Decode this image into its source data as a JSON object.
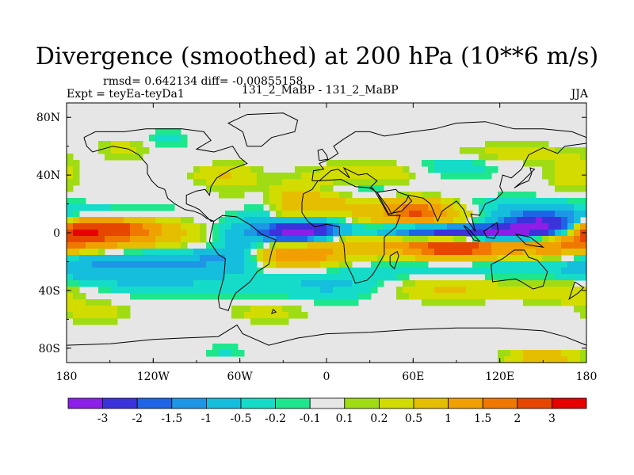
{
  "chart_data": {
    "type": "heatmap",
    "title": "Divergence (smoothed) at 200 hPa (10**6 m/s)",
    "stats_line": "rmsd= 0.642134 diff= -0.00855158",
    "experiment_label": "Expt = teyEa-teyDa1",
    "case_label": "131_2_MaBP - 131_2_MaBP",
    "season": "JJA",
    "xlim": [
      -180,
      180
    ],
    "ylim": [
      -90,
      90
    ],
    "x_ticks": [
      {
        "value": -180,
        "label": "180"
      },
      {
        "value": -120,
        "label": "120W"
      },
      {
        "value": -60,
        "label": "60W"
      },
      {
        "value": 0,
        "label": "0"
      },
      {
        "value": 60,
        "label": "60E"
      },
      {
        "value": 120,
        "label": "120E"
      },
      {
        "value": 180,
        "label": "180"
      }
    ],
    "y_ticks": [
      {
        "value": 80,
        "label": "80N"
      },
      {
        "value": 40,
        "label": "40N"
      },
      {
        "value": 0,
        "label": "0"
      },
      {
        "value": -40,
        "label": "40S"
      },
      {
        "value": -80,
        "label": "80S"
      }
    ],
    "colorbar": {
      "labels": [
        "-3",
        "-2",
        "-1.5",
        "-1",
        "-0.5",
        "-0.2",
        "-0.1",
        "0.1",
        "0.2",
        "0.5",
        "1",
        "1.5",
        "2",
        "3"
      ],
      "colors": [
        "#8c1ee8",
        "#3c32dc",
        "#1e64e6",
        "#1e96e6",
        "#14bedc",
        "#14dcc8",
        "#1ee68c",
        "#e6e6e6",
        "#a0dc14",
        "#d2dc00",
        "#e6be00",
        "#f0a000",
        "#f07800",
        "#e64600",
        "#e60000"
      ]
    },
    "field": {
      "background_value": 0,
      "blobs": [
        {
          "lon": -160,
          "lat": 3,
          "rlon": 22,
          "rlat": 6,
          "value": 2.2
        },
        {
          "lon": -130,
          "lat": 3,
          "rlon": 25,
          "rlat": 6,
          "value": 1.0
        },
        {
          "lon": -175,
          "lat": 0,
          "rlon": 10,
          "rlat": 5,
          "value": 1.5
        },
        {
          "lon": -150,
          "lat": 12,
          "rlon": 35,
          "rlat": 5,
          "value": -0.6
        },
        {
          "lon": -150,
          "lat": -8,
          "rlon": 40,
          "rlat": 5,
          "value": 0.7
        },
        {
          "lon": -145,
          "lat": -18,
          "rlon": 40,
          "rlat": 5,
          "value": -0.8
        },
        {
          "lon": -155,
          "lat": -28,
          "rlon": 30,
          "rlat": 7,
          "value": -0.7
        },
        {
          "lon": -95,
          "lat": -30,
          "rlon": 30,
          "rlat": 10,
          "value": -0.5
        },
        {
          "lon": -75,
          "lat": -18,
          "rlon": 22,
          "rlat": 6,
          "value": -0.6
        },
        {
          "lon": -60,
          "lat": -5,
          "rlon": 12,
          "rlat": 12,
          "value": -0.8
        },
        {
          "lon": -45,
          "lat": 15,
          "rlon": 10,
          "rlat": 10,
          "value": -0.6
        },
        {
          "lon": -15,
          "lat": 20,
          "rlon": 30,
          "rlat": 10,
          "value": 0.9
        },
        {
          "lon": -25,
          "lat": 0,
          "rlon": 15,
          "rlat": 5,
          "value": -3.0
        },
        {
          "lon": -5,
          "lat": 3,
          "rlon": 15,
          "rlat": 5,
          "value": -1.8
        },
        {
          "lon": -20,
          "lat": -15,
          "rlon": 25,
          "rlat": 7,
          "value": 1.5
        },
        {
          "lon": 0,
          "lat": -35,
          "rlon": 30,
          "rlat": 8,
          "value": -0.6
        },
        {
          "lon": 60,
          "lat": 15,
          "rlon": 15,
          "rlat": 6,
          "value": 1.3
        },
        {
          "lon": 45,
          "lat": -5,
          "rlon": 30,
          "rlat": 6,
          "value": 0.9
        },
        {
          "lon": 75,
          "lat": 0,
          "rlon": 30,
          "rlat": 4,
          "value": -3.0
        },
        {
          "lon": 125,
          "lat": 0,
          "rlon": 20,
          "rlat": 4,
          "value": -2.5
        },
        {
          "lon": 150,
          "lat": 6,
          "rlon": 18,
          "rlat": 5,
          "value": -3.0
        },
        {
          "lon": 90,
          "lat": -10,
          "rlon": 25,
          "rlat": 6,
          "value": 2.5
        },
        {
          "lon": 75,
          "lat": 12,
          "rlon": 30,
          "rlat": 6,
          "value": 1.0
        },
        {
          "lon": 130,
          "lat": 15,
          "rlon": 30,
          "rlat": 6,
          "value": -0.8
        },
        {
          "lon": 160,
          "lat": -10,
          "rlon": 25,
          "rlat": 6,
          "value": 1.2
        },
        {
          "lon": 100,
          "lat": -25,
          "rlon": 50,
          "rlat": 6,
          "value": -0.5
        },
        {
          "lon": 85,
          "lat": -38,
          "rlon": 30,
          "rlat": 6,
          "value": 0.6
        },
        {
          "lon": 165,
          "lat": -40,
          "rlon": 20,
          "rlat": 6,
          "value": 0.5
        },
        {
          "lon": 30,
          "lat": 40,
          "rlon": 25,
          "rlat": 6,
          "value": 0.5
        },
        {
          "lon": 20,
          "lat": 30,
          "rlon": 25,
          "rlat": 5,
          "value": -0.5
        },
        {
          "lon": -70,
          "lat": 40,
          "rlon": 15,
          "rlat": 5,
          "value": 0.5
        },
        {
          "lon": 170,
          "lat": 40,
          "rlon": 12,
          "rlat": 8,
          "value": 0.4
        },
        {
          "lon": -140,
          "lat": 58,
          "rlon": 12,
          "rlat": 5,
          "value": 0.3
        },
        {
          "lon": -110,
          "lat": 65,
          "rlon": 10,
          "rlat": 4,
          "value": -0.3
        },
        {
          "lon": 130,
          "lat": 55,
          "rlon": 30,
          "rlat": 5,
          "value": 0.3
        },
        {
          "lon": 90,
          "lat": 45,
          "rlon": 20,
          "rlat": 5,
          "value": -0.4
        },
        {
          "lon": -160,
          "lat": -55,
          "rlon": 15,
          "rlat": 5,
          "value": 0.4
        },
        {
          "lon": -40,
          "lat": -55,
          "rlon": 20,
          "rlat": 5,
          "value": 0.3
        },
        {
          "lon": 150,
          "lat": -86,
          "rlon": 15,
          "rlat": 3,
          "value": 1.0
        },
        {
          "lon": -70,
          "lat": -82,
          "rlon": 8,
          "rlat": 3,
          "value": -0.3
        }
      ]
    }
  },
  "colors": {
    "plot_background": "#e6e6e6",
    "coastline": "#000000"
  }
}
